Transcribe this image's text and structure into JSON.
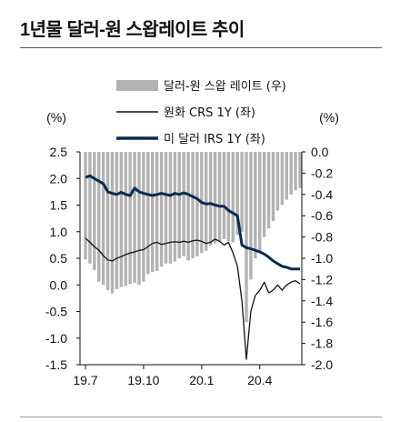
{
  "title": "1년물 달러-원 스왑레이트 추이",
  "chart_data": {
    "type": "bar+line",
    "title": "1년물 달러-원 스왑레이트 추이",
    "left_axis_label": "(%)",
    "right_axis_label": "(%)",
    "left_ylim": [
      -1.5,
      2.5
    ],
    "right_ylim": [
      -2.0,
      0.0
    ],
    "left_ticks": [
      "2.5",
      "2.0",
      "1.5",
      "1.0",
      "0.5",
      "0.0",
      "-0.5",
      "-1.0",
      "-1.5"
    ],
    "right_ticks": [
      "0.0",
      "-0.2",
      "-0.4",
      "-0.6",
      "-0.8",
      "-1.0",
      "-1.2",
      "-1.4",
      "-1.6",
      "-1.8",
      "-2.0"
    ],
    "x_tick_labels": [
      "19.7",
      "19.10",
      "20.1",
      "20.4"
    ],
    "x_tick_index": [
      0,
      13,
      26,
      39
    ],
    "legend": [
      {
        "label": "달러-원 스왑 레이트 (우)",
        "kind": "bar",
        "color": "#b3b3b3"
      },
      {
        "label": "원화 CRS 1Y (좌)",
        "kind": "line",
        "color": "#111111"
      },
      {
        "label": "미 달러 IRS 1Y (좌)",
        "kind": "line",
        "color": "#0b2a52"
      }
    ],
    "series": [
      {
        "name": "달러-원 스왑 레이트 (우)",
        "axis": "right",
        "values": [
          -1.01,
          -1.05,
          -1.11,
          -1.22,
          -1.25,
          -1.3,
          -1.33,
          -1.29,
          -1.27,
          -1.26,
          -1.24,
          -1.23,
          -1.25,
          -1.22,
          -1.15,
          -1.13,
          -1.12,
          -1.08,
          -1.05,
          -1.05,
          -1.03,
          -1.0,
          -0.98,
          -1.02,
          -1.0,
          -0.98,
          -0.95,
          -0.93,
          -0.88,
          -0.86,
          -0.84,
          -0.82,
          -0.84,
          -0.85,
          -0.78,
          -0.75,
          -1.6,
          -1.2,
          -1.0,
          -0.95,
          -0.8,
          -0.72,
          -0.65,
          -0.55,
          -0.5,
          -0.45,
          -0.4,
          -0.36,
          -0.34
        ]
      },
      {
        "name": "원화 CRS 1Y (좌)",
        "axis": "left",
        "values": [
          0.88,
          0.8,
          0.72,
          0.65,
          0.55,
          0.47,
          0.45,
          0.5,
          0.53,
          0.57,
          0.6,
          0.62,
          0.65,
          0.66,
          0.72,
          0.78,
          0.8,
          0.76,
          0.78,
          0.8,
          0.81,
          0.8,
          0.82,
          0.8,
          0.83,
          0.84,
          0.82,
          0.78,
          0.8,
          0.86,
          0.82,
          0.75,
          0.8,
          0.6,
          0.35,
          -0.3,
          -1.4,
          -0.5,
          -0.2,
          -0.1,
          0.05,
          -0.15,
          -0.1,
          0.0,
          -0.1,
          0.0,
          0.05,
          0.08,
          0.02
        ]
      },
      {
        "name": "미 달러 IRS 1Y (좌)",
        "axis": "left",
        "values": [
          2.02,
          2.05,
          2.0,
          1.95,
          1.9,
          1.75,
          1.72,
          1.7,
          1.74,
          1.7,
          1.68,
          1.82,
          1.75,
          1.72,
          1.7,
          1.68,
          1.7,
          1.72,
          1.7,
          1.68,
          1.72,
          1.7,
          1.73,
          1.7,
          1.66,
          1.62,
          1.55,
          1.52,
          1.53,
          1.5,
          1.48,
          1.48,
          1.4,
          1.35,
          1.3,
          0.75,
          0.7,
          0.68,
          0.65,
          0.62,
          0.58,
          0.52,
          0.45,
          0.4,
          0.35,
          0.33,
          0.3,
          0.3,
          0.3
        ]
      }
    ]
  }
}
